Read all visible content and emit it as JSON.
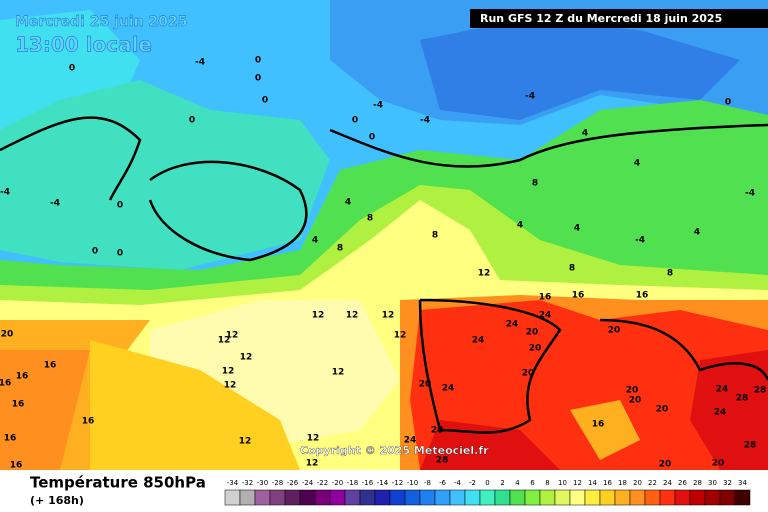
{
  "header": {
    "date": "Mercredi 25 juin 2025",
    "time": "13:00 locale",
    "run": "Run GFS 12 Z du Mercredi 18 juin 2025"
  },
  "footer": {
    "title": "Température 850hPa",
    "subtitle": "(+ 168h)",
    "copyright": "Copyright © 2025 Meteociel.fr"
  },
  "legend": {
    "ticks": [
      -34,
      -32,
      -30,
      -28,
      -26,
      -24,
      -22,
      -20,
      -18,
      -16,
      -14,
      -12,
      -10,
      -8,
      -6,
      -4,
      -2,
      0,
      2,
      4,
      6,
      8,
      10,
      12,
      14,
      16,
      18,
      20,
      22,
      24,
      26,
      28,
      30,
      32,
      34
    ],
    "colors": [
      "#d0d0d0",
      "#b0b0b0",
      "#a060a0",
      "#804080",
      "#602060",
      "#500050",
      "#780078",
      "#9000a0",
      "#6040a0",
      "#303090",
      "#2020b0",
      "#1040d0",
      "#1060e0",
      "#2080f0",
      "#30a0f8",
      "#40c0ff",
      "#40e0f0",
      "#40f0c0",
      "#30e090",
      "#50e050",
      "#80f040",
      "#b0f040",
      "#e0f860",
      "#ffff80",
      "#ffee40",
      "#ffd020",
      "#ffb020",
      "#ff9020",
      "#ff6010",
      "#ff3010",
      "#e01010",
      "#c00000",
      "#a00000",
      "#800000",
      "#400000"
    ]
  },
  "contour_labels": [
    0,
    -4,
    0,
    0,
    0,
    0,
    0,
    0,
    -4,
    -4,
    -4,
    0,
    4,
    4,
    -4,
    8,
    4,
    4,
    -4,
    4,
    -4,
    -4,
    0,
    0,
    0,
    4,
    8,
    4,
    8,
    8,
    12,
    8,
    8,
    16,
    16,
    16,
    12,
    12,
    12,
    12,
    12,
    12,
    12,
    12,
    12,
    12,
    24,
    24,
    24,
    20,
    20,
    20,
    20,
    24,
    20,
    20,
    24,
    28,
    20,
    24,
    20,
    28,
    24,
    28,
    28,
    16,
    28,
    20,
    20,
    20,
    16,
    16,
    16,
    16,
    16,
    16,
    16,
    12,
    12,
    12
  ]
}
